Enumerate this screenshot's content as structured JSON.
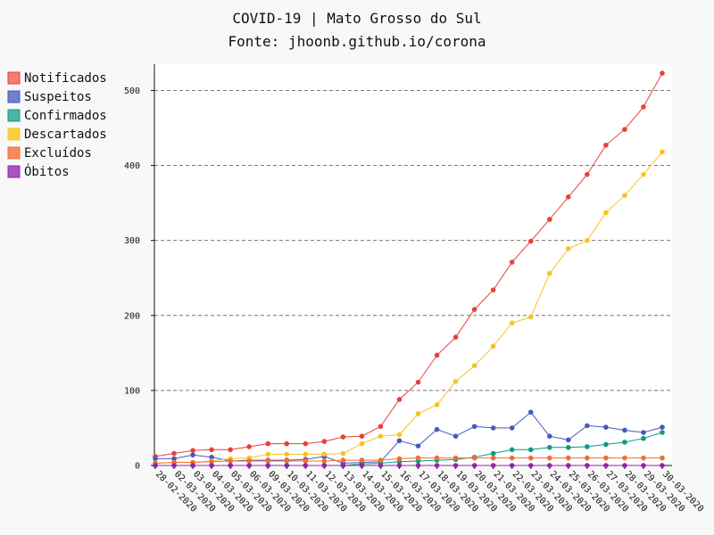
{
  "chart_data": {
    "type": "line",
    "title": "COVID-19 | Mato Grosso do Sul",
    "subtitle": "Fonte: jhoonb.github.io/corona",
    "xlabel": "",
    "ylabel": "",
    "ylim": [
      0,
      535
    ],
    "yticks": [
      0,
      100,
      200,
      300,
      400,
      500
    ],
    "grid": "horizontal dashed",
    "legend_position": "left",
    "categories": [
      "28-02-2020",
      "02-03-2020",
      "03-03-2020",
      "04-03-2020",
      "05-03-2020",
      "06-03-2020",
      "09-03-2020",
      "10-03-2020",
      "11-03-2020",
      "12-03-2020",
      "13-03-2020",
      "14-03-2020",
      "15-03-2020",
      "16-03-2020",
      "17-03-2020",
      "18-03-2020",
      "19-03-2020",
      "20-03-2020",
      "21-03-2020",
      "22-03-2020",
      "23-03-2020",
      "24-03-2020",
      "25-03-2020",
      "26-03-2020",
      "27-03-2020",
      "28-03-2020",
      "29-03-2020",
      "30-03-2020"
    ],
    "series": [
      {
        "name": "Notificados",
        "color": "#e8413a",
        "legend_color": "#f47c74",
        "values": [
          12,
          16,
          20,
          21,
          21,
          25,
          29,
          29,
          29,
          32,
          38,
          39,
          52,
          88,
          111,
          147,
          171,
          208,
          234,
          271,
          299,
          328,
          358,
          388,
          427,
          448,
          478,
          523
        ]
      },
      {
        "name": "Suspeitos",
        "color": "#4759bd",
        "legend_color": "#6f7fd1",
        "values": [
          9,
          9,
          14,
          11,
          6,
          7,
          7,
          7,
          8,
          12,
          3,
          4,
          5,
          33,
          26,
          48,
          39,
          52,
          50,
          50,
          71,
          39,
          34,
          53,
          51,
          47,
          44,
          51
        ]
      },
      {
        "name": "Confirmados",
        "color": "#0f9a86",
        "legend_color": "#4db5a6",
        "values": [
          0,
          0,
          0,
          0,
          0,
          0,
          0,
          0,
          0,
          0,
          0,
          2,
          3,
          5,
          6,
          7,
          8,
          11,
          16,
          21,
          21,
          24,
          24,
          25,
          28,
          31,
          36,
          44
        ]
      },
      {
        "name": "Descartados",
        "color": "#f7c31e",
        "legend_color": "#f9cf42",
        "values": [
          3,
          4,
          4,
          6,
          9,
          10,
          15,
          15,
          15,
          15,
          16,
          29,
          39,
          41,
          69,
          81,
          112,
          133,
          159,
          190,
          198,
          256,
          289,
          300,
          337,
          360,
          388,
          418
        ]
      },
      {
        "name": "Excluídos",
        "color": "#f36c36",
        "legend_color": "#f58a5c",
        "values": [
          3,
          4,
          4,
          5,
          6,
          6,
          6,
          6,
          6,
          6,
          7,
          7,
          7,
          9,
          10,
          10,
          10,
          10,
          10,
          10,
          10,
          10,
          10,
          10,
          10,
          10,
          10,
          10
        ]
      },
      {
        "name": "Óbitos",
        "color": "#8d27a6",
        "legend_color": "#a955c0",
        "values": [
          0,
          0,
          0,
          0,
          0,
          0,
          0,
          0,
          0,
          0,
          0,
          0,
          0,
          0,
          0,
          0,
          0,
          0,
          0,
          0,
          0,
          0,
          0,
          0,
          0,
          0,
          0,
          0
        ]
      }
    ]
  }
}
